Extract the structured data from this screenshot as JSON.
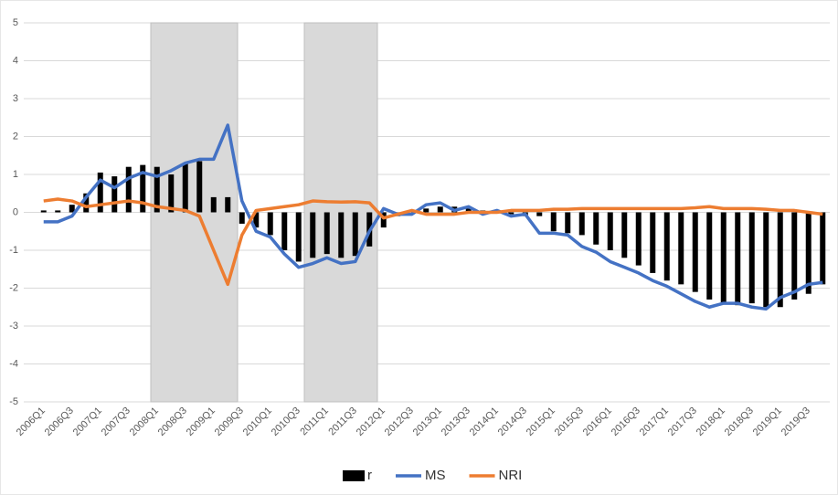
{
  "chart_data": {
    "type": "combo",
    "categories": [
      "2006Q1",
      null,
      "2006Q3",
      null,
      "2007Q1",
      null,
      "2007Q3",
      null,
      "2008Q1",
      null,
      "2008Q3",
      null,
      "2009Q1",
      null,
      "2009Q3",
      null,
      "2010Q1",
      null,
      "2010Q3",
      null,
      "2011Q1",
      null,
      "2011Q3",
      null,
      "2012Q1",
      null,
      "2012Q3",
      null,
      "2013Q1",
      null,
      "2013Q3",
      null,
      "2014Q1",
      null,
      "2014Q3",
      null,
      "2015Q1",
      null,
      "2015Q3",
      null,
      "2016Q1",
      null,
      "2016Q3",
      null,
      "2017Q1",
      null,
      "2017Q3",
      null,
      "2018Q1",
      null,
      "2018Q3",
      null,
      "2019Q1",
      null,
      "2019Q3",
      null
    ],
    "series": [
      {
        "name": "r",
        "type": "bar",
        "color": "#000000",
        "values": [
          0.05,
          0.05,
          0.2,
          0.5,
          1.05,
          0.95,
          1.2,
          1.25,
          1.2,
          1.0,
          1.3,
          1.35,
          0.4,
          0.4,
          -0.3,
          -0.4,
          -0.6,
          -1.0,
          -1.3,
          -1.2,
          -1.1,
          -1.2,
          -1.15,
          -0.9,
          -0.4,
          -0.1,
          0.05,
          0.1,
          0.15,
          0.15,
          0.1,
          0.05,
          0,
          -0.05,
          -0.1,
          -0.1,
          -0.5,
          -0.55,
          -0.6,
          -0.85,
          -1.0,
          -1.2,
          -1.4,
          -1.6,
          -1.8,
          -1.9,
          -2.1,
          -2.3,
          -2.4,
          -2.45,
          -2.4,
          -2.5,
          -2.5,
          -2.3,
          -2.15,
          -1.9
        ]
      },
      {
        "name": "MS",
        "type": "line",
        "color": "#4472c4",
        "values": [
          -0.25,
          -0.25,
          -0.1,
          0.4,
          0.85,
          0.65,
          0.9,
          1.05,
          0.95,
          1.1,
          1.3,
          1.4,
          1.4,
          2.3,
          0.3,
          -0.5,
          -0.65,
          -1.1,
          -1.45,
          -1.35,
          -1.2,
          -1.35,
          -1.3,
          -0.5,
          0.1,
          -0.05,
          -0.05,
          0.2,
          0.25,
          0.05,
          0.15,
          -0.05,
          0.05,
          -0.1,
          -0.05,
          -0.55,
          -0.55,
          -0.6,
          -0.9,
          -1.05,
          -1.3,
          -1.45,
          -1.6,
          -1.8,
          -1.95,
          -2.15,
          -2.35,
          -2.5,
          -2.4,
          -2.4,
          -2.5,
          -2.55,
          -2.25,
          -2.1,
          -1.9,
          -1.85
        ]
      },
      {
        "name": "NRI",
        "type": "line",
        "color": "#ed7d31",
        "values": [
          0.3,
          0.35,
          0.3,
          0.15,
          0.2,
          0.25,
          0.3,
          0.25,
          0.15,
          0.1,
          0.05,
          -0.1,
          -1.0,
          -1.9,
          -0.6,
          0.05,
          0.1,
          0.15,
          0.2,
          0.3,
          0.28,
          0.27,
          0.28,
          0.25,
          -0.15,
          -0.05,
          0.05,
          -0.05,
          -0.05,
          -0.05,
          0,
          0,
          0,
          0.05,
          0.05,
          0.05,
          0.08,
          0.08,
          0.1,
          0.1,
          0.1,
          0.1,
          0.1,
          0.1,
          0.1,
          0.1,
          0.12,
          0.15,
          0.1,
          0.1,
          0.1,
          0.08,
          0.05,
          0.05,
          0,
          -0.05
        ]
      }
    ],
    "ylim": [
      -5,
      5
    ],
    "yticks": [
      -5,
      -4,
      -3,
      -2,
      -1,
      0,
      1,
      2,
      3,
      4,
      5
    ],
    "grid": true,
    "legend": "bottom"
  }
}
